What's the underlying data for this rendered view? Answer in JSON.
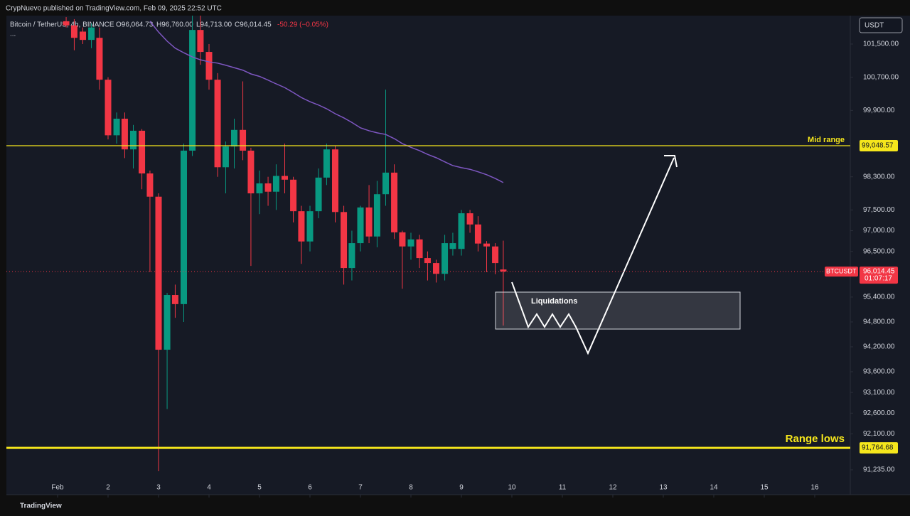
{
  "header": "CrypNuevo published on TradingView.com, Feb 09, 2025 22:52 UTC",
  "legend": {
    "symbol": "Bitcoin / TetherUS, 4h, BINANCE",
    "open": "O96,064.73",
    "high": "H96,760.00",
    "low": "L94,713.00",
    "close": "C96,014.45",
    "change": "-50.29 (−0.05%)",
    "more": "..."
  },
  "currency": "USDT",
  "footer": "TradingView",
  "chart_data": {
    "type": "candlestick",
    "x": [
      1.17,
      1.33,
      1.5,
      1.67,
      1.83,
      2,
      2.17,
      2.33,
      2.5,
      2.67,
      2.83,
      3,
      3.17,
      3.33,
      3.5,
      3.67,
      3.83,
      4,
      4.17,
      4.33,
      4.5,
      4.67,
      4.83,
      5,
      5.17,
      5.33,
      5.5,
      5.67,
      5.83,
      6,
      6.17,
      6.33,
      6.5,
      6.67,
      6.83,
      7,
      7.17,
      7.33,
      7.5,
      7.67,
      7.83,
      8,
      8.17,
      8.33,
      8.5,
      8.67,
      8.83,
      9,
      9.17,
      9.33,
      9.5,
      9.67,
      9.83
    ],
    "open": [
      102050,
      101950,
      101800,
      101600,
      101650,
      100640,
      99300,
      99700,
      98960,
      99410,
      98380,
      97820,
      94130,
      95450,
      95230,
      98930,
      101840,
      101310,
      100640,
      98530,
      99030,
      99430,
      98930,
      97900,
      98140,
      97940,
      98320,
      98230,
      97470,
      96740,
      97470,
      98280,
      98960,
      97450,
      96100,
      96700,
      97560,
      96860,
      97880,
      98400,
      96960,
      96620,
      96790,
      96340,
      96220,
      95960,
      96560,
      96560,
      97420,
      97150,
      96690,
      96620,
      96064.73
    ],
    "high": [
      102150,
      102100,
      101900,
      102000,
      101900,
      100700,
      99850,
      99850,
      99550,
      99450,
      98450,
      97900,
      95500,
      95700,
      99100,
      102185,
      102185,
      101500,
      100800,
      99150,
      99700,
      100600,
      99000,
      98450,
      98300,
      98600,
      99100,
      98300,
      97600,
      97600,
      98500,
      99100,
      99050,
      97600,
      97000,
      97600,
      98100,
      98200,
      100400,
      98600,
      97000,
      96950,
      96900,
      96500,
      96300,
      96900,
      96950,
      97500,
      97500,
      97350,
      96750,
      96700,
      96760
    ],
    "low": [
      101900,
      101350,
      101500,
      101400,
      100400,
      99200,
      99100,
      98750,
      98500,
      98000,
      96000,
      91200,
      92700,
      94900,
      94800,
      98800,
      101000,
      100400,
      98300,
      97900,
      98500,
      98700,
      96150,
      97400,
      97600,
      97500,
      97900,
      97200,
      96200,
      96500,
      97300,
      98100,
      97200,
      95700,
      95800,
      96500,
      96700,
      96600,
      97600,
      96800,
      95600,
      96300,
      96100,
      95800,
      95750,
      95800,
      96400,
      96400,
      96950,
      96500,
      96000,
      95950,
      94713
    ],
    "close": [
      101950,
      101650,
      101600,
      101900,
      100640,
      99300,
      99700,
      98960,
      99410,
      98380,
      97820,
      94130,
      95450,
      95230,
      98930,
      101840,
      101310,
      100640,
      98530,
      99030,
      99430,
      98930,
      97900,
      98140,
      97940,
      98320,
      98230,
      97470,
      96740,
      97470,
      98280,
      98960,
      97450,
      96100,
      96700,
      97560,
      96860,
      97880,
      98400,
      96960,
      96620,
      96790,
      96340,
      96220,
      95960,
      96700,
      96700,
      97420,
      97150,
      96690,
      96620,
      96220,
      96014.45
    ],
    "up_color": "#089981",
    "down_color": "#f23645",
    "ma": {
      "color": "#7e57c2",
      "values": [
        null,
        null,
        null,
        null,
        null,
        null,
        null,
        null,
        null,
        null,
        102050,
        101790,
        101570,
        101400,
        101290,
        101190,
        101120,
        101070,
        101040,
        100990,
        100930,
        100870,
        100780,
        100720,
        100630,
        100540,
        100450,
        100330,
        100210,
        100110,
        100030,
        99940,
        99820,
        99720,
        99610,
        99480,
        99410,
        99360,
        99320,
        99220,
        99100,
        99010,
        98930,
        98840,
        98760,
        98660,
        98570,
        98520,
        98480,
        98420,
        98350,
        98260,
        98160
      ]
    },
    "levels": [
      {
        "label": "Mid range",
        "value": 99048.57,
        "value_label": "99,048.57",
        "color": "#f5e61c"
      },
      {
        "label": "Range lows",
        "value": 91764.68,
        "value_label": "91,764.68",
        "color": "#f5e61c"
      }
    ],
    "last_price": {
      "symbol": "BTCUSDT",
      "value": 96014.45,
      "label": "96,014.45",
      "countdown": "01:07:17",
      "color": "#f23645"
    },
    "annotation": "Liquidations",
    "xlim": [
      -0.014,
      16.704
    ],
    "xticks": [
      {
        "value": 1,
        "label": "Feb"
      },
      2,
      3,
      4,
      5,
      6,
      7,
      8,
      9,
      10,
      11,
      12,
      13,
      14,
      15,
      16
    ],
    "ylim": [
      90635,
      102185
    ],
    "yticks": [
      {
        "value": 101500,
        "label": "101,500.00"
      },
      {
        "value": 100700,
        "label": "100,700.00"
      },
      {
        "value": 99900,
        "label": "99,900.00"
      },
      {
        "value": 98300,
        "label": "98,300.00"
      },
      {
        "value": 97500,
        "label": "97,500.00"
      },
      {
        "value": 97000,
        "label": "97,000.00"
      },
      {
        "value": 96500,
        "label": "96,500.00"
      },
      {
        "value": 95400,
        "label": "95,400.00"
      },
      {
        "value": 94800,
        "label": "94,800.00"
      },
      {
        "value": 94200,
        "label": "94,200.00"
      },
      {
        "value": 93600,
        "label": "93,600.00"
      },
      {
        "value": 93100,
        "label": "93,100.00"
      },
      {
        "value": 92600,
        "label": "92,600.00"
      },
      {
        "value": 92100,
        "label": "92,100.00"
      },
      {
        "value": 91235,
        "label": "91,235.00"
      }
    ]
  }
}
